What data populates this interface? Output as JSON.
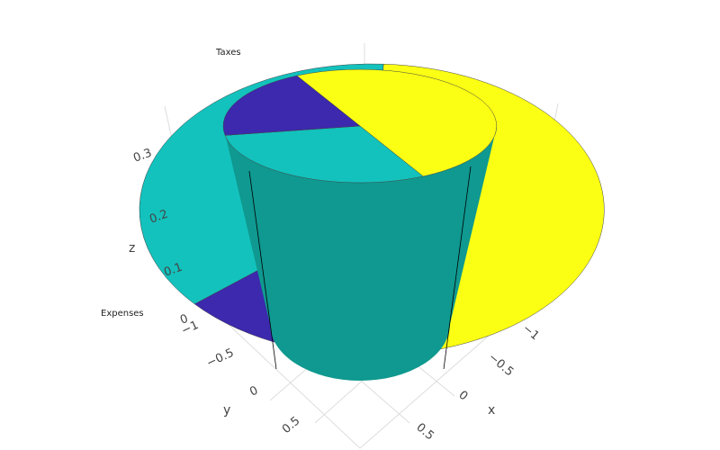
{
  "chart_data": {
    "type": "pie",
    "subtype": "3d-extruded",
    "annotations": {
      "top": "Taxes",
      "left": "Expenses"
    },
    "outer_ring": {
      "slices": [
        {
          "color": "#fbff13",
          "fraction": 0.47
        },
        {
          "color": "#3c29ad",
          "fraction": 0.16
        },
        {
          "color": "#13c2bd",
          "fraction": 0.37
        }
      ]
    },
    "inner_cylinder": {
      "side_color": "#0f9990",
      "slices": [
        {
          "color": "#fbff13",
          "fraction": 0.5
        },
        {
          "color": "#13c2bd",
          "fraction": 0.3
        },
        {
          "color": "#3c29ad",
          "fraction": 0.2
        }
      ]
    },
    "axes": {
      "x": {
        "title": "x",
        "ticks": [
          "0",
          "0.5",
          "−0.5",
          "−1"
        ]
      },
      "y": {
        "title": "y",
        "ticks": [
          "−1",
          "−0.5",
          "0",
          "0.5"
        ]
      },
      "z": {
        "title": "z",
        "ticks": [
          "0",
          "0.1",
          "0.2",
          "0.3"
        ]
      }
    },
    "grid": true
  }
}
